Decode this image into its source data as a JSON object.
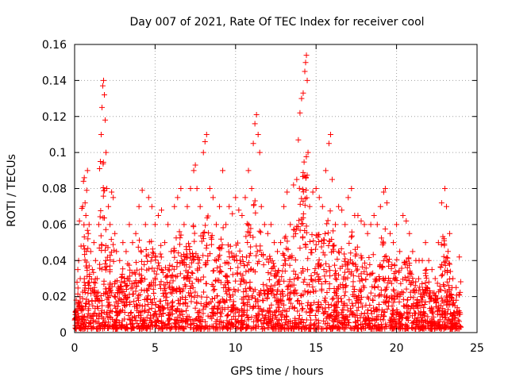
{
  "chart_data": {
    "type": "scatter",
    "title": "Day 007 of 2021, Rate Of TEC Index for receiver cool",
    "xlabel": "GPS time / hours",
    "ylabel": "ROTI / TECUs",
    "xlim": [
      0,
      25
    ],
    "ylim": [
      0,
      0.16
    ],
    "x_ticks": [
      "0",
      "5",
      "10",
      "15",
      "20",
      "25"
    ],
    "y_ticks": [
      "0",
      "0.02",
      "0.04",
      "0.06",
      "0.08",
      "0.1",
      "0.12",
      "0.14",
      "0.16"
    ],
    "grid": true,
    "marker": "+",
    "color": "#ff0000",
    "data_extent_hours": [
      0,
      24
    ],
    "series": [
      {
        "points": [
          [
            0.05,
            0.01
          ],
          [
            0.1,
            0.018
          ],
          [
            0.15,
            0.028
          ],
          [
            0.2,
            0.035
          ],
          [
            0.25,
            0.04
          ],
          [
            0.3,
            0.062
          ],
          [
            0.35,
            0.03
          ],
          [
            0.4,
            0.048
          ],
          [
            0.45,
            0.069
          ],
          [
            0.5,
            0.07
          ],
          [
            0.55,
            0.084
          ],
          [
            0.6,
            0.086
          ],
          [
            0.65,
            0.072
          ],
          [
            0.7,
            0.065
          ],
          [
            0.75,
            0.079
          ],
          [
            0.8,
            0.09
          ],
          [
            0.85,
            0.055
          ],
          [
            0.9,
            0.06
          ],
          [
            1.0,
            0.045
          ],
          [
            1.1,
            0.035
          ],
          [
            1.2,
            0.05
          ],
          [
            1.3,
            0.04
          ],
          [
            1.4,
            0.03
          ],
          [
            1.5,
            0.06
          ],
          [
            1.55,
            0.091
          ],
          [
            1.6,
            0.095
          ],
          [
            1.65,
            0.11
          ],
          [
            1.7,
            0.125
          ],
          [
            1.75,
            0.137
          ],
          [
            1.8,
            0.14
          ],
          [
            1.85,
            0.132
          ],
          [
            1.9,
            0.118
          ],
          [
            1.95,
            0.1
          ],
          [
            2.0,
            0.08
          ],
          [
            2.1,
            0.07
          ],
          [
            2.2,
            0.06
          ],
          [
            2.3,
            0.078
          ],
          [
            2.4,
            0.075
          ],
          [
            2.5,
            0.055
          ],
          [
            2.6,
            0.045
          ],
          [
            2.8,
            0.04
          ],
          [
            3.0,
            0.05
          ],
          [
            3.2,
            0.045
          ],
          [
            3.4,
            0.06
          ],
          [
            3.6,
            0.05
          ],
          [
            3.8,
            0.055
          ],
          [
            4.0,
            0.07
          ],
          [
            4.2,
            0.079
          ],
          [
            4.4,
            0.06
          ],
          [
            4.6,
            0.075
          ],
          [
            4.8,
            0.07
          ],
          [
            5.0,
            0.06
          ],
          [
            5.2,
            0.065
          ],
          [
            5.4,
            0.068
          ],
          [
            5.6,
            0.05
          ],
          [
            5.8,
            0.06
          ],
          [
            6.0,
            0.045
          ],
          [
            6.2,
            0.07
          ],
          [
            6.4,
            0.075
          ],
          [
            6.6,
            0.08
          ],
          [
            6.8,
            0.06
          ],
          [
            7.0,
            0.07
          ],
          [
            7.2,
            0.08
          ],
          [
            7.4,
            0.09
          ],
          [
            7.5,
            0.093
          ],
          [
            7.6,
            0.08
          ],
          [
            7.8,
            0.07
          ],
          [
            8.0,
            0.1
          ],
          [
            8.1,
            0.106
          ],
          [
            8.2,
            0.11
          ],
          [
            8.4,
            0.08
          ],
          [
            8.6,
            0.075
          ],
          [
            8.8,
            0.06
          ],
          [
            9.0,
            0.07
          ],
          [
            9.2,
            0.09
          ],
          [
            9.4,
            0.06
          ],
          [
            9.6,
            0.07
          ],
          [
            9.8,
            0.066
          ],
          [
            10.0,
            0.075
          ],
          [
            10.2,
            0.068
          ],
          [
            10.4,
            0.065
          ],
          [
            10.6,
            0.075
          ],
          [
            10.8,
            0.09
          ],
          [
            11.0,
            0.08
          ],
          [
            11.1,
            0.105
          ],
          [
            11.2,
            0.116
          ],
          [
            11.3,
            0.121
          ],
          [
            11.4,
            0.11
          ],
          [
            11.5,
            0.1
          ],
          [
            11.6,
            0.07
          ],
          [
            11.8,
            0.06
          ],
          [
            12.0,
            0.055
          ],
          [
            12.2,
            0.06
          ],
          [
            12.4,
            0.05
          ],
          [
            12.6,
            0.045
          ],
          [
            12.8,
            0.05
          ],
          [
            13.0,
            0.07
          ],
          [
            13.2,
            0.078
          ],
          [
            13.4,
            0.06
          ],
          [
            13.6,
            0.082
          ],
          [
            13.8,
            0.085
          ],
          [
            13.9,
            0.107
          ],
          [
            14.0,
            0.122
          ],
          [
            14.1,
            0.13
          ],
          [
            14.2,
            0.133
          ],
          [
            14.3,
            0.145
          ],
          [
            14.35,
            0.15
          ],
          [
            14.4,
            0.154
          ],
          [
            14.45,
            0.14
          ],
          [
            14.5,
            0.1
          ],
          [
            14.6,
            0.07
          ],
          [
            14.8,
            0.078
          ],
          [
            15.0,
            0.08
          ],
          [
            15.2,
            0.075
          ],
          [
            15.4,
            0.07
          ],
          [
            15.6,
            0.09
          ],
          [
            15.8,
            0.105
          ],
          [
            15.9,
            0.11
          ],
          [
            16.0,
            0.085
          ],
          [
            16.2,
            0.06
          ],
          [
            16.4,
            0.07
          ],
          [
            16.6,
            0.068
          ],
          [
            16.8,
            0.06
          ],
          [
            17.0,
            0.075
          ],
          [
            17.2,
            0.08
          ],
          [
            17.4,
            0.065
          ],
          [
            17.6,
            0.065
          ],
          [
            17.8,
            0.062
          ],
          [
            18.0,
            0.06
          ],
          [
            18.2,
            0.055
          ],
          [
            18.4,
            0.06
          ],
          [
            18.6,
            0.065
          ],
          [
            18.8,
            0.06
          ],
          [
            19.0,
            0.07
          ],
          [
            19.2,
            0.078
          ],
          [
            19.3,
            0.08
          ],
          [
            19.4,
            0.072
          ],
          [
            19.6,
            0.055
          ],
          [
            19.8,
            0.05
          ],
          [
            20.0,
            0.06
          ],
          [
            20.2,
            0.045
          ],
          [
            20.4,
            0.065
          ],
          [
            20.6,
            0.062
          ],
          [
            20.8,
            0.055
          ],
          [
            21.0,
            0.045
          ],
          [
            21.2,
            0.04
          ],
          [
            21.4,
            0.04
          ],
          [
            21.6,
            0.04
          ],
          [
            21.8,
            0.05
          ],
          [
            22.0,
            0.04
          ],
          [
            22.2,
            0.035
          ],
          [
            22.4,
            0.03
          ],
          [
            22.6,
            0.05
          ],
          [
            22.8,
            0.072
          ],
          [
            23.0,
            0.08
          ],
          [
            23.1,
            0.07
          ],
          [
            23.3,
            0.055
          ],
          [
            23.5,
            0.03
          ],
          [
            23.7,
            0.025
          ],
          [
            23.9,
            0.042
          ]
        ]
      }
    ]
  }
}
